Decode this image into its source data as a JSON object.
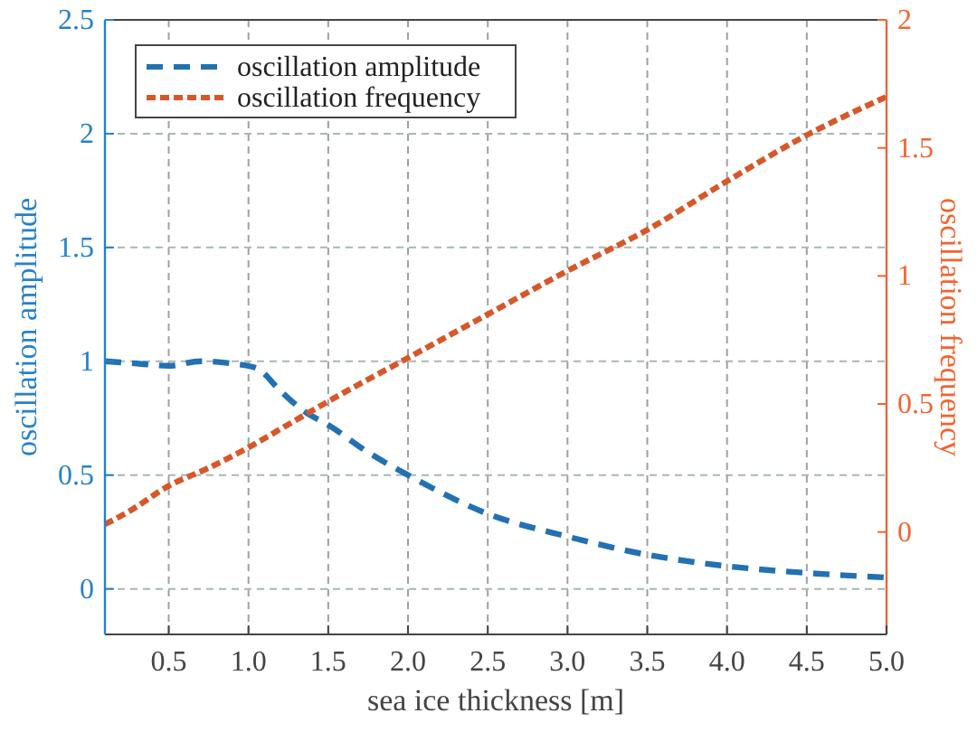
{
  "chart_data": {
    "type": "line",
    "xlabel": "sea ice thickness [m]",
    "ylabel": "oscillation amplitude",
    "y2label": "oscillation frequency",
    "xlim": [
      0.1,
      5
    ],
    "xticks": [
      {
        "value": 0.5,
        "label": "0.5"
      },
      {
        "value": 1,
        "label": "1.0"
      },
      {
        "value": 1.5,
        "label": "1.5"
      },
      {
        "value": 2,
        "label": "2.0"
      },
      {
        "value": 2.5,
        "label": "2.5"
      },
      {
        "value": 3,
        "label": "3.0"
      },
      {
        "value": 3.5,
        "label": "3.5"
      },
      {
        "value": 4,
        "label": "4.0"
      },
      {
        "value": 4.5,
        "label": "4.5"
      },
      {
        "value": 5,
        "label": "5.0"
      }
    ],
    "ylim": [
      -0.2,
      2.5
    ],
    "yticks": [
      0,
      0.5,
      1,
      1.5,
      2,
      2.5
    ],
    "y2lim": [
      -0.4,
      2
    ],
    "y2ticks": [
      0,
      0.5,
      1,
      1.5,
      2
    ],
    "grid": true,
    "legend": "top left",
    "marker": "none",
    "series": [
      {
        "name": "oscillation amplitude",
        "color": "#2271b3",
        "line_style": "dashed",
        "x": [
          0.1,
          0.3,
          0.5,
          0.7,
          0.9,
          1.05,
          1.2,
          1.35,
          1.5,
          1.75,
          2.0,
          2.5,
          3.0,
          3.5,
          4.0,
          4.5,
          5.0
        ],
        "values": [
          1.0,
          0.99,
          0.98,
          1.0,
          0.99,
          0.97,
          0.87,
          0.78,
          0.72,
          0.6,
          0.5,
          0.33,
          0.23,
          0.15,
          0.1,
          0.07,
          0.05
        ]
      },
      {
        "name": "oscillation frequency",
        "color": "#d6582a",
        "line_style": "dotted",
        "axis": "y2",
        "x": [
          0.1,
          0.25,
          0.5,
          0.75,
          1.0,
          1.25,
          1.5,
          2.0,
          2.5,
          3.0,
          3.5,
          4.0,
          4.5,
          5.0
        ],
        "values": [
          0.03,
          0.08,
          0.18,
          0.25,
          0.33,
          0.42,
          0.51,
          0.68,
          0.85,
          1.02,
          1.18,
          1.37,
          1.55,
          1.7
        ]
      }
    ]
  }
}
